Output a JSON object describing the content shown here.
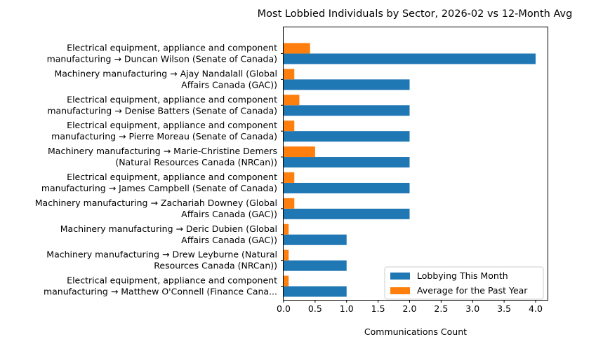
{
  "chart_data": {
    "type": "bar",
    "orientation": "horizontal",
    "title": "Most Lobbied Individuals by Sector, 2026-02 vs 12-Month Avg",
    "xlabel": "Communications Count",
    "ylabel": "",
    "xlim": [
      0,
      4.2
    ],
    "xticks": [
      "0.0",
      "0.5",
      "1.0",
      "1.5",
      "2.0",
      "2.5",
      "3.0",
      "3.5",
      "4.0"
    ],
    "grid": false,
    "legend_position": "lower-right",
    "categories": [
      [
        "Electrical equipment, appliance and component",
        "manufacturing → Duncan Wilson (Senate of Canada)"
      ],
      [
        "Machinery manufacturing → Ajay Nandalall (Global",
        "Affairs Canada (GAC))"
      ],
      [
        "Electrical equipment, appliance and component",
        "manufacturing → Denise Batters (Senate of Canada)"
      ],
      [
        "Electrical equipment, appliance and component",
        "manufacturing → Pierre Moreau (Senate of Canada)"
      ],
      [
        "Machinery manufacturing → Marie-Christine Demers",
        "(Natural Resources Canada (NRCan))"
      ],
      [
        "Electrical equipment, appliance and component",
        "manufacturing → James Campbell (Senate of Canada)"
      ],
      [
        "Machinery manufacturing → Zachariah Downey (Global",
        "Affairs Canada (GAC))"
      ],
      [
        "Machinery manufacturing → Deric Dubien (Global",
        "Affairs Canada (GAC))"
      ],
      [
        "Machinery manufacturing → Drew Leyburne (Natural",
        "Resources Canada (NRCan))"
      ],
      [
        "Electrical equipment, appliance and component",
        "manufacturing → Matthew O'Connell (Finance Cana..."
      ]
    ],
    "series": [
      {
        "name": "Lobbying This Month",
        "color": "#1f77b4",
        "values": [
          4,
          2,
          2,
          2,
          2,
          2,
          2,
          1,
          1,
          1
        ]
      },
      {
        "name": "Average for the Past Year",
        "color": "#ff7f0e",
        "values": [
          0.42,
          0.17,
          0.25,
          0.17,
          0.5,
          0.17,
          0.17,
          0.08,
          0.08,
          0.08
        ]
      }
    ]
  }
}
